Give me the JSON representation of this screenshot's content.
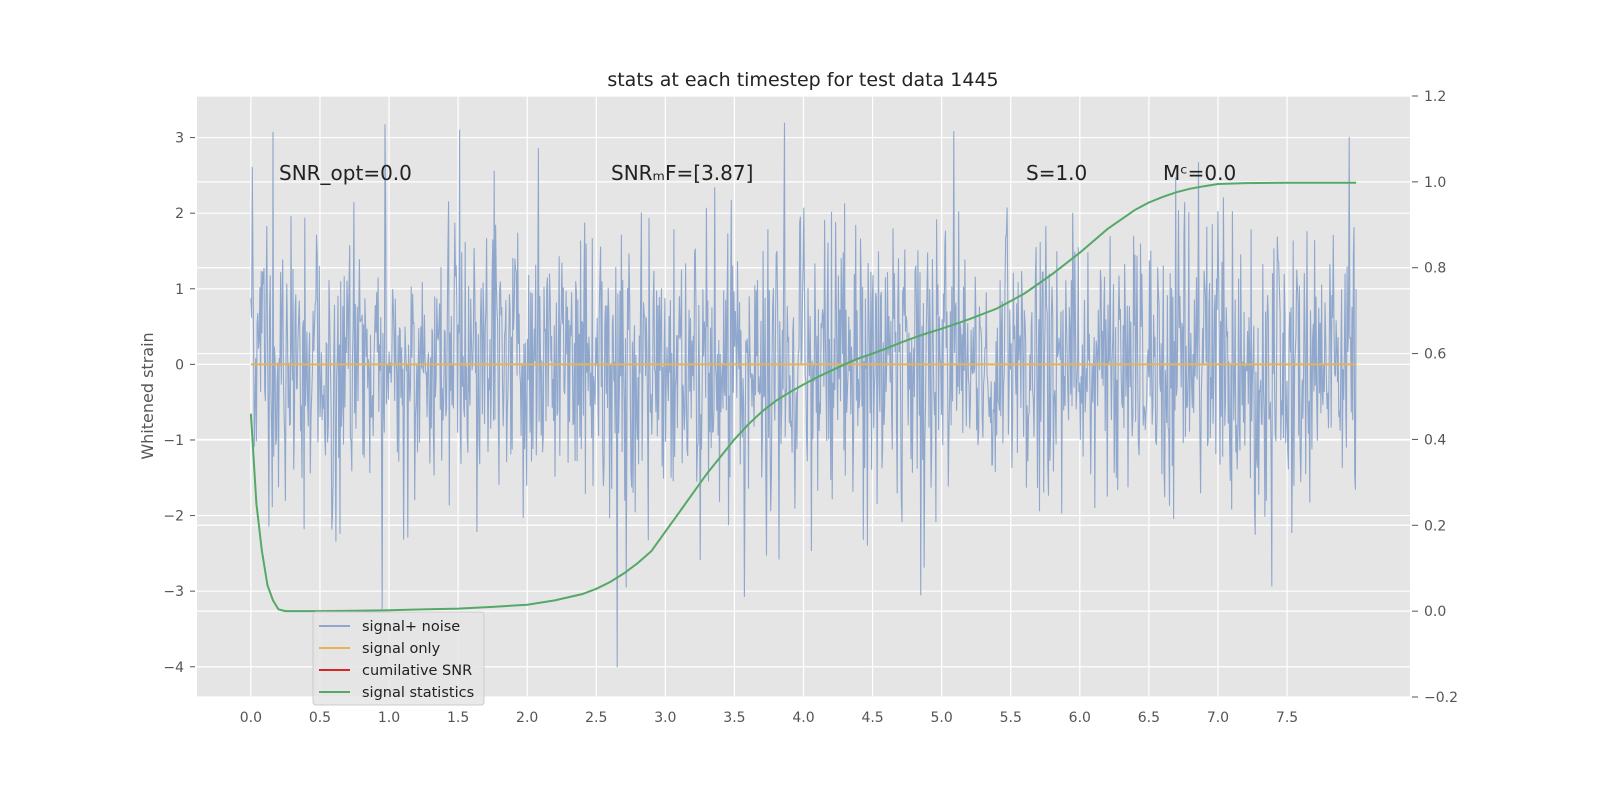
{
  "chart_data": {
    "type": "line",
    "title": "stats at each timestep for test data 1445",
    "xlabel": "",
    "ylabel": "Whitened strain",
    "y2label": "",
    "xlim": [
      -0.39,
      8.39
    ],
    "ylim": [
      -4.4,
      3.55
    ],
    "y2lim": [
      -0.2,
      1.2
    ],
    "grid": true,
    "xticks": [
      "0.0",
      "0.5",
      "1.0",
      "1.5",
      "2.0",
      "2.5",
      "3.0",
      "3.5",
      "4.0",
      "4.5",
      "5.0",
      "5.5",
      "6.0",
      "6.5",
      "7.0",
      "7.5"
    ],
    "xtick_values": [
      0.0,
      0.5,
      1.0,
      1.5,
      2.0,
      2.5,
      3.0,
      3.5,
      4.0,
      4.5,
      5.0,
      5.5,
      6.0,
      6.5,
      7.0,
      7.5
    ],
    "yticks": [
      "3",
      "2",
      "1",
      "0",
      "−1",
      "−2",
      "−3",
      "−4"
    ],
    "ytick_values": [
      3,
      2,
      1,
      0,
      -1,
      -2,
      -3,
      -4
    ],
    "y2ticks": [
      "1.2",
      "1.0",
      "0.8",
      "0.6",
      "0.4",
      "0.2",
      "0.0",
      "−0.2"
    ],
    "y2tick_values": [
      1.2,
      1.0,
      0.8,
      0.6,
      0.4,
      0.2,
      0.0,
      -0.2
    ],
    "annotations": [
      {
        "id": "snr-opt",
        "text": "SNR_opt=0.0",
        "x": 0.2,
        "y": 2.5
      },
      {
        "id": "snr-mf",
        "text": "SNRₘF=[3.87]",
        "x": 2.62,
        "y": 2.5
      },
      {
        "id": "s-value",
        "text": "S=1.0",
        "x": 5.62,
        "y": 2.5
      },
      {
        "id": "mc-value",
        "text": "Mᶜ=0.0",
        "x": 6.61,
        "y": 2.5
      }
    ],
    "legend": {
      "position": "lower-left",
      "entries": [
        "signal+ noise",
        "signal only",
        "cumilative SNR",
        "signal statistics"
      ]
    },
    "series": [
      {
        "name": "signal+ noise",
        "axis": "left",
        "style": "noise",
        "x_range": [
          0.0,
          8.0
        ],
        "samples": 1600,
        "std": 1.0,
        "outliers": [
          {
            "x": 0.16,
            "y": 3.07
          },
          {
            "x": 0.97,
            "y": 3.17
          },
          {
            "x": 1.51,
            "y": 3.1
          },
          {
            "x": 3.86,
            "y": 3.19
          },
          {
            "x": 5.09,
            "y": 3.08
          },
          {
            "x": 7.95,
            "y": 3.0
          },
          {
            "x": 0.95,
            "y": -3.23
          },
          {
            "x": 2.65,
            "y": -4.0
          },
          {
            "x": 3.57,
            "y": -3.07
          },
          {
            "x": 4.85,
            "y": -3.05
          },
          {
            "x": 7.39,
            "y": -2.93
          }
        ]
      },
      {
        "name": "signal only",
        "axis": "left",
        "x": [
          0.0,
          8.0
        ],
        "y": [
          0.0,
          0.0
        ]
      },
      {
        "name": "cumilative SNR",
        "axis": "right",
        "x": [],
        "y": []
      },
      {
        "name": "signal statistics",
        "axis": "right",
        "x": [
          0.0,
          0.04,
          0.08,
          0.12,
          0.16,
          0.2,
          0.25,
          0.3,
          0.4,
          0.5,
          0.75,
          1.0,
          1.25,
          1.5,
          1.75,
          2.0,
          2.2,
          2.4,
          2.5,
          2.6,
          2.7,
          2.8,
          2.9,
          3.0,
          3.1,
          3.2,
          3.3,
          3.4,
          3.5,
          3.6,
          3.7,
          3.8,
          3.9,
          4.0,
          4.1,
          4.2,
          4.3,
          4.4,
          4.5,
          4.6,
          4.7,
          4.8,
          4.9,
          5.0,
          5.2,
          5.4,
          5.6,
          5.8,
          6.0,
          6.2,
          6.4,
          6.5,
          6.6,
          6.7,
          6.8,
          6.9,
          7.0,
          7.2,
          7.5,
          8.0
        ],
        "y": [
          0.46,
          0.25,
          0.14,
          0.06,
          0.025,
          0.004,
          0.0,
          0.0,
          0.0,
          0.0,
          0.001,
          0.002,
          0.004,
          0.006,
          0.01,
          0.015,
          0.025,
          0.04,
          0.052,
          0.068,
          0.088,
          0.112,
          0.14,
          0.185,
          0.23,
          0.275,
          0.32,
          0.36,
          0.4,
          0.435,
          0.465,
          0.49,
          0.51,
          0.528,
          0.545,
          0.56,
          0.575,
          0.589,
          0.6,
          0.612,
          0.625,
          0.637,
          0.648,
          0.658,
          0.68,
          0.705,
          0.74,
          0.785,
          0.835,
          0.89,
          0.935,
          0.952,
          0.965,
          0.976,
          0.984,
          0.99,
          0.995,
          0.997,
          0.998,
          0.998
        ]
      }
    ]
  },
  "colors": {
    "background": "#ffffff",
    "plot_background": "#e5e5e5",
    "grid": "#ffffff",
    "signal_noise": "#8fa7cc",
    "signal_only": "#e6b35a",
    "cumulative_snr": "#d62728",
    "signal_statistics": "#55a868",
    "tick_text": "#555555",
    "title_text": "#222222"
  }
}
